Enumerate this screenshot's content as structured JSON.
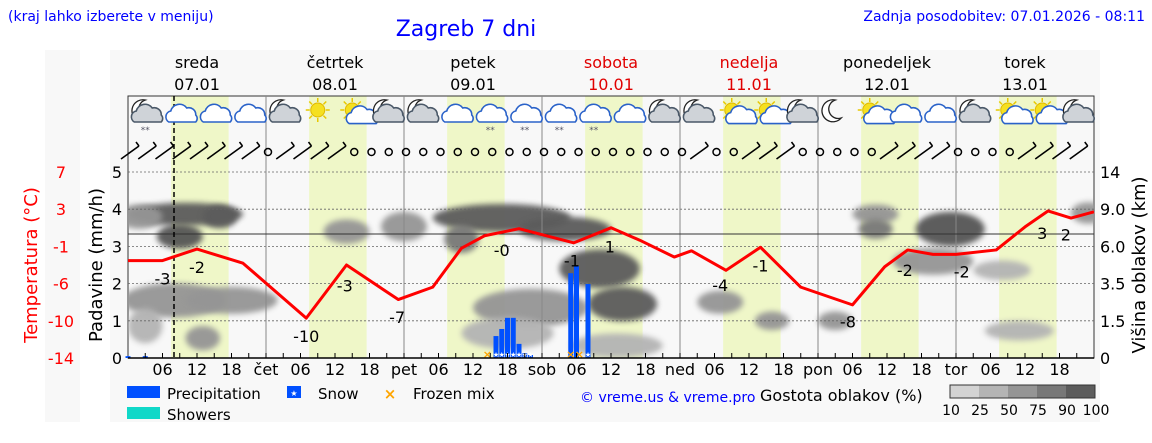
{
  "header": {
    "hint": "(kraj lahko izberete v meniju)",
    "title": "Zagreb 7 dni",
    "updated": "Zadnja posodobitev: 07.01.2026 - 08:11"
  },
  "days": [
    {
      "name": "sreda",
      "date": "07.01",
      "weekend": false,
      "short": ""
    },
    {
      "name": "četrtek",
      "date": "08.01",
      "weekend": false,
      "short": "čet"
    },
    {
      "name": "petek",
      "date": "09.01",
      "weekend": false,
      "short": "pet"
    },
    {
      "name": "sobota",
      "date": "10.01",
      "weekend": true,
      "short": "sob"
    },
    {
      "name": "nedelja",
      "date": "11.01",
      "weekend": true,
      "short": "ned"
    },
    {
      "name": "ponedeljek",
      "date": "12.01",
      "weekend": false,
      "short": "pon"
    },
    {
      "name": "torek",
      "date": "13.01",
      "weekend": false,
      "short": "tor"
    }
  ],
  "colors": {
    "text_blue": "#0000ff",
    "weekend": "#e00000",
    "temperature": "#ff0000",
    "precipitation": "#0050ff",
    "showers": "#10d8c8",
    "frozen_mix": "#ffa500",
    "daylight": "#eff7c8",
    "background": "#f8f8f8"
  },
  "chart_data": {
    "type": "line",
    "x_unit": "hours from 07.01 00:00",
    "xlim": [
      0,
      168
    ],
    "x_tick_labels": [
      "06",
      "12",
      "18"
    ],
    "left_axis_temperature": {
      "label": "Temperatura (°C)",
      "ticks": [
        "7",
        "3",
        "-1",
        "-6",
        "-10",
        "-14"
      ],
      "range": [
        -14,
        7
      ]
    },
    "left_axis_precip": {
      "label": "Padavine (mm/h)",
      "ticks": [
        "0",
        "1",
        "2",
        "3",
        "4",
        "5"
      ],
      "range": [
        0,
        5
      ]
    },
    "right_axis_cloud": {
      "label": "Višina oblakov (km)",
      "ticks": [
        "0",
        "1.5",
        "3.5",
        "6.0",
        "9.0",
        "14"
      ]
    },
    "grid": true,
    "current_time_hour": 8,
    "freezing_line_temp": 0,
    "daylight_hours": [
      7.5,
      17.5
    ],
    "temperature": {
      "x": [
        0,
        6,
        12,
        20,
        31,
        38,
        47,
        53,
        58,
        62,
        68,
        77.5,
        84,
        89,
        95,
        98,
        104,
        110,
        117,
        126,
        131.6,
        135.6,
        140,
        144,
        151,
        156,
        160,
        164,
        168
      ],
      "y": [
        -3.0,
        -3.0,
        -1.7,
        -3.3,
        -9.5,
        -3.5,
        -7.4,
        -6.0,
        -1.6,
        -0.2,
        0.6,
        -1.0,
        0.7,
        -0.7,
        -2.6,
        -1.9,
        -4.1,
        -1.5,
        -6.0,
        -8.0,
        -3.7,
        -1.8,
        -2.3,
        -2.3,
        -1.8,
        0.8,
        2.6,
        1.8,
        2.5
      ]
    },
    "temperature_labels": [
      {
        "x": 6,
        "text": "-3"
      },
      {
        "x": 12,
        "text": "-2"
      },
      {
        "x": 31,
        "text": "-10"
      },
      {
        "x": 37.7,
        "text": "-3"
      },
      {
        "x": 46.8,
        "text": "-7"
      },
      {
        "x": 65,
        "text": "-0"
      },
      {
        "x": 77.2,
        "text": "-1"
      },
      {
        "x": 83.8,
        "text": "1"
      },
      {
        "x": 103,
        "text": "-4"
      },
      {
        "x": 110,
        "text": "-1"
      },
      {
        "x": 125.2,
        "text": "-8"
      },
      {
        "x": 135.1,
        "text": "-2"
      },
      {
        "x": 145,
        "text": "-2"
      },
      {
        "x": 159,
        "text": "3"
      },
      {
        "x": 163.1,
        "text": "2"
      }
    ],
    "precipitation": {
      "x": [
        0,
        3,
        64,
        65,
        66,
        67,
        68,
        69,
        70,
        77,
        78,
        80
      ],
      "y": [
        0.05,
        0.05,
        0.59,
        0.78,
        1.08,
        1.08,
        0.38,
        0.13,
        0.08,
        2.28,
        2.47,
        1.99
      ]
    },
    "snow_x": [
      64,
      65,
      66,
      67,
      68,
      69,
      70,
      80
    ],
    "frozen_mix_x": [
      62.5,
      77,
      78.5
    ],
    "cloud_density": [
      {
        "x": 10,
        "km": 8.6,
        "w": 10,
        "h": 0.9,
        "d": 90
      },
      {
        "x": 2,
        "km": 8.4,
        "w": 4,
        "h": 1.0,
        "d": 50
      },
      {
        "x": 16,
        "km": 8.4,
        "w": 3,
        "h": 0.9,
        "d": 90
      },
      {
        "x": 9,
        "km": 6.8,
        "w": 4,
        "h": 1.0,
        "d": 100
      },
      {
        "x": 8,
        "km": 2.6,
        "w": 9,
        "h": 1.2,
        "d": 50
      },
      {
        "x": 18,
        "km": 2.6,
        "w": 8,
        "h": 0.8,
        "d": 50
      },
      {
        "x": 3,
        "km": 1.3,
        "w": 3,
        "h": 1.0,
        "d": 25
      },
      {
        "x": 13,
        "km": 0.8,
        "w": 3,
        "h": 0.5,
        "d": 50
      },
      {
        "x": 38,
        "km": 7.2,
        "w": 4,
        "h": 1.0,
        "d": 50
      },
      {
        "x": 48,
        "km": 7.6,
        "w": 4,
        "h": 1.4,
        "d": 50
      },
      {
        "x": 65,
        "km": 8.3,
        "w": 12,
        "h": 1.3,
        "d": 90
      },
      {
        "x": 76,
        "km": 7.4,
        "w": 8,
        "h": 1.0,
        "d": 90
      },
      {
        "x": 58,
        "km": 6.6,
        "w": 3,
        "h": 1.3,
        "d": 75
      },
      {
        "x": 82,
        "km": 4.5,
        "w": 7,
        "h": 1.8,
        "d": 90
      },
      {
        "x": 86,
        "km": 2.4,
        "w": 6,
        "h": 1.2,
        "d": 90
      },
      {
        "x": 70,
        "km": 2.2,
        "w": 10,
        "h": 1.4,
        "d": 50
      },
      {
        "x": 66,
        "km": 1.0,
        "w": 8,
        "h": 0.8,
        "d": 25
      },
      {
        "x": 85,
        "km": 0.5,
        "w": 8,
        "h": 0.5,
        "d": 25
      },
      {
        "x": 103,
        "km": 2.5,
        "w": 4,
        "h": 0.6,
        "d": 50
      },
      {
        "x": 112,
        "km": 1.5,
        "w": 3,
        "h": 0.3,
        "d": 50
      },
      {
        "x": 123,
        "km": 1.5,
        "w": 3,
        "h": 0.3,
        "d": 50
      },
      {
        "x": 130,
        "km": 8.6,
        "w": 4,
        "h": 0.6,
        "d": 50
      },
      {
        "x": 130,
        "km": 7.4,
        "w": 3,
        "h": 0.6,
        "d": 75
      },
      {
        "x": 143,
        "km": 7.4,
        "w": 6,
        "h": 1.8,
        "d": 100
      },
      {
        "x": 140,
        "km": 5.0,
        "w": 7,
        "h": 1.0,
        "d": 50
      },
      {
        "x": 152,
        "km": 4.4,
        "w": 5,
        "h": 0.5,
        "d": 25
      },
      {
        "x": 155,
        "km": 1.1,
        "w": 6,
        "h": 0.3,
        "d": 25
      },
      {
        "x": 167,
        "km": 8.7,
        "w": 3,
        "h": 0.8,
        "d": 50
      }
    ]
  },
  "weather_icons": [
    "moon-cloud-snow",
    "cloud",
    "cloud",
    "cloud",
    "moon-cloud",
    "sun",
    "sun-cloud",
    "moon-cloud",
    "moon-cloud",
    "cloud",
    "cloud-snow",
    "cloud-snow",
    "cloud-snow",
    "cloud-snow",
    "cloud",
    "moon-cloud",
    "moon-cloud",
    "sun-cloud",
    "sun-cloud",
    "moon-cloud",
    "moon",
    "sun-cloud",
    "cloud",
    "cloud",
    "moon-cloud",
    "sun-cloud",
    "sun-cloud",
    "moon-cloud"
  ],
  "wind": [
    "barb",
    "barb",
    "barb",
    "barb",
    "barb",
    "barb",
    "barb",
    "barb",
    "calm",
    "barb",
    "barb",
    "barb",
    "barb",
    "calm",
    "calm",
    "calm",
    "calm",
    "calm",
    "calm",
    "calm",
    "calm",
    "calm",
    "calm",
    "calm",
    "calm",
    "calm",
    "calm",
    "calm",
    "calm",
    "calm",
    "calm",
    "calm",
    "calm",
    "barb",
    "calm",
    "calm",
    "barb",
    "barb",
    "barb",
    "calm",
    "calm",
    "calm",
    "calm",
    "calm",
    "barb",
    "barb",
    "barb",
    "barb",
    "calm",
    "calm",
    "calm",
    "calm",
    "barb",
    "barb",
    "barb",
    "barb"
  ],
  "legend": {
    "precipitation": "Precipitation",
    "snow": "Snow",
    "frozen_mix": "Frozen mix",
    "showers": "Showers",
    "credit": "© vreme.us & vreme.pro",
    "cloud_title": "Gostota oblakov (%)",
    "cloud_levels": [
      "10",
      "25",
      "50",
      "75",
      "90",
      "100"
    ]
  }
}
